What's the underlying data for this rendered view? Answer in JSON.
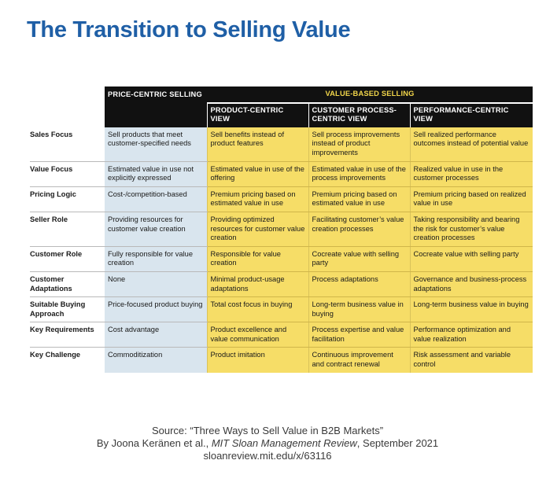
{
  "title": "The Transition to Selling Value",
  "headers": {
    "price_centric": "PRICE-CENTRIC SELLING",
    "value_based": "VALUE-BASED SELLING",
    "product_centric": "PRODUCT-CENTRIC VIEW",
    "customer_process": "CUSTOMER PROCESS-CENTRIC VIEW",
    "performance_centric": "PERFORMANCE-CENTRIC VIEW"
  },
  "rows": [
    {
      "label": "Sales Focus",
      "price": "Sell products that meet customer-specified needs",
      "product": "Sell benefits instead of product features",
      "process": "Sell process improvements instead of product improvements",
      "performance": "Sell realized performance outcomes instead of potential value"
    },
    {
      "label": "Value Focus",
      "price": "Estimated value in use not explicitly expressed",
      "product": "Estimated value in use of the offering",
      "process": "Estimated value in use of the process improvements",
      "performance": "Realized value in use in the customer processes"
    },
    {
      "label": "Pricing Logic",
      "price": "Cost-/competition-based",
      "product": "Premium pricing based on estimated value in use",
      "process": "Premium pricing based on estimated value in use",
      "performance": "Premium pricing based on realized value in use"
    },
    {
      "label": "Seller Role",
      "price": "Providing resources for customer value creation",
      "product": "Providing optimized resources for customer value creation",
      "process": "Facilitating customer’s value creation processes",
      "performance": "Taking responsibility and bearing the risk for customer’s value creation processes"
    },
    {
      "label": "Customer Role",
      "price": "Fully responsible for value creation",
      "product": "Responsible for value creation",
      "process": "Cocreate value with selling party",
      "performance": "Cocreate value with selling party"
    },
    {
      "label": "Customer Adaptations",
      "price": "None",
      "product": "Minimal product-usage adaptations",
      "process": "Process adaptations",
      "performance": "Governance and business-process adaptations"
    },
    {
      "label": "Suitable Buying Approach",
      "price": "Price-focused product buying",
      "product": "Total cost focus in buying",
      "process": "Long-term business value in buying",
      "performance": "Long-term business value in buying"
    },
    {
      "label": "Key Requirements",
      "price": "Cost advantage",
      "product": "Product excellence and value communication",
      "process": "Process expertise and value facilitation",
      "performance": "Performance optimization and value realization"
    },
    {
      "label": "Key Challenge",
      "price": "Commoditization",
      "product": "Product imitation",
      "process": "Continuous improvement and contract renewal",
      "performance": "Risk assessment and variable control"
    }
  ],
  "source": {
    "line1": "Source: “Three Ways to Sell Value in B2B Markets”",
    "line2_prefix": "By Joona Keränen et al., ",
    "line2_pub": "MIT Sloan Management Review",
    "line2_suffix": ", September 2021",
    "line3": "sloanreview.mit.edu/x/63116"
  }
}
